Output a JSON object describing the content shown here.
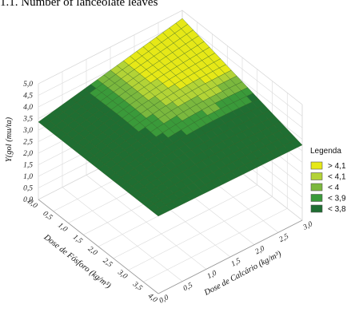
{
  "caption": "1.1. Number of lanceolate leaves",
  "chart_data": {
    "type": "surface",
    "title": "1.1. Number of lanceolate leaves",
    "zlabel": "Y(gol (mu/ta)",
    "xlabel": "Dose de Fósforo (kg/m³)",
    "ylabel": "Dose de Calcário (kg/m³)",
    "z_ticks": [
      "0,0",
      "0,5",
      "1,0",
      "1,5",
      "2,0",
      "2,5",
      "3,0",
      "3,5",
      "4,0",
      "4,5",
      "5,0"
    ],
    "x_ticks": [
      "0,0",
      "0,5",
      "1,0",
      "1,5",
      "2,0",
      "2,5",
      "3,0",
      "3,5",
      "4,0"
    ],
    "y_ticks": [
      "0,0",
      "0,5",
      "1,0",
      "1,5",
      "2,0",
      "2,5",
      "3,0"
    ],
    "zlim": [
      0,
      5
    ],
    "xlim": [
      0,
      4
    ],
    "ylim": [
      0,
      3
    ],
    "surface_corners": [
      {
        "fosforo": 0,
        "calcario": 0,
        "value": 3.7
      },
      {
        "fosforo": 4,
        "calcario": 0,
        "value": 3.0
      },
      {
        "fosforo": 0,
        "calcario": 3,
        "value": 4.3
      },
      {
        "fosforo": 4,
        "calcario": 3,
        "value": 3.6
      }
    ],
    "legend": {
      "title": "Legenda",
      "position": "right",
      "items": [
        {
          "label": "> 4,1",
          "color": "#e6e817"
        },
        {
          "label": "< 4,1",
          "color": "#b3d336"
        },
        {
          "label": "< 4",
          "color": "#7bb83e"
        },
        {
          "label": "< 3,9",
          "color": "#3a9a3a"
        },
        {
          "label": "< 3,8",
          "color": "#1f6e32"
        }
      ]
    },
    "grid": true
  }
}
